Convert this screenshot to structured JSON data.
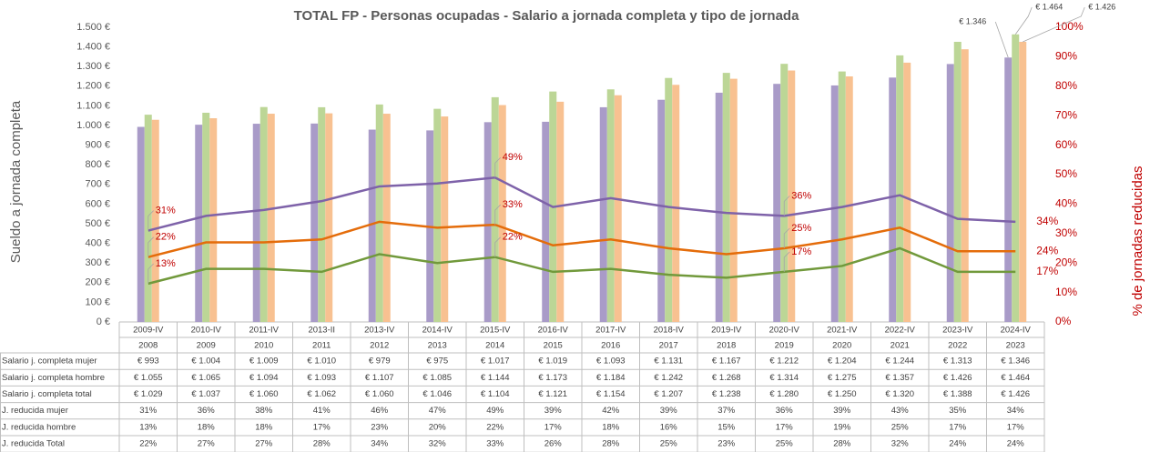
{
  "chart_data": {
    "type": "bar",
    "title": "TOTAL FP - Personas ocupadas - Salario a jornada completa y tipo de jornada",
    "y_label": "Sueldo a jornada completa",
    "y2_label": "% de jornadas reducidas",
    "categories": [
      "2009-IV",
      "2010-IV",
      "2011-IV",
      "2013-II",
      "2013-IV",
      "2014-IV",
      "2015-IV",
      "2016-IV",
      "2017-IV",
      "2018-IV",
      "2019-IV",
      "2020-IV",
      "2021-IV",
      "2022-IV",
      "2023-IV",
      "2024-IV"
    ],
    "category_groups": [
      "2008",
      "2009",
      "2010",
      "2011",
      "2012",
      "2013",
      "2014",
      "2015",
      "2016",
      "2017",
      "2018",
      "2019",
      "2020",
      "2021",
      "2022",
      "2023"
    ],
    "ylim": [
      0,
      1500
    ],
    "yticks": [
      {
        "value": 0,
        "label": "0 €"
      },
      {
        "value": 100,
        "label": "100 €"
      },
      {
        "value": 200,
        "label": "200 €"
      },
      {
        "value": 300,
        "label": "300 €"
      },
      {
        "value": 400,
        "label": "400 €"
      },
      {
        "value": 500,
        "label": "500 €"
      },
      {
        "value": 600,
        "label": "600 €"
      },
      {
        "value": 700,
        "label": "700 €"
      },
      {
        "value": 800,
        "label": "800 €"
      },
      {
        "value": 900,
        "label": "900 €"
      },
      {
        "value": 1000,
        "label": "1.000 €"
      },
      {
        "value": 1100,
        "label": "1.100 €"
      },
      {
        "value": 1200,
        "label": "1.200 €"
      },
      {
        "value": 1300,
        "label": "1.300 €"
      },
      {
        "value": 1400,
        "label": "1.400 €"
      },
      {
        "value": 1500,
        "label": "1.500 €"
      }
    ],
    "y2lim": [
      0,
      100
    ],
    "y2ticks": [
      {
        "value": 0,
        "label": "0%"
      },
      {
        "value": 10,
        "label": "10%"
      },
      {
        "value": 20,
        "label": "20%"
      },
      {
        "value": 30,
        "label": "30%"
      },
      {
        "value": 40,
        "label": "40%"
      },
      {
        "value": 50,
        "label": "50%"
      },
      {
        "value": 60,
        "label": "60%"
      },
      {
        "value": 70,
        "label": "70%"
      },
      {
        "value": 80,
        "label": "80%"
      },
      {
        "value": 90,
        "label": "90%"
      },
      {
        "value": 100,
        "label": "100%"
      }
    ],
    "grid": false,
    "series": [
      {
        "name": "Salario j. completa mujer",
        "type": "bar",
        "color": "#a99bc8",
        "values": [
          993,
          1004,
          1009,
          1010,
          979,
          975,
          1017,
          1019,
          1093,
          1131,
          1167,
          1212,
          1204,
          1244,
          1313,
          1346
        ],
        "value_labels": [
          "€ 993",
          "€ 1.004",
          "€ 1.009",
          "€ 1.010",
          "€ 979",
          "€ 975",
          "€ 1.017",
          "€ 1.019",
          "€ 1.093",
          "€ 1.131",
          "€ 1.167",
          "€ 1.212",
          "€ 1.204",
          "€ 1.244",
          "€ 1.313",
          "€ 1.346"
        ]
      },
      {
        "name": "Salario j. completa hombre",
        "type": "bar",
        "color": "#bcd696",
        "values": [
          1055,
          1065,
          1094,
          1093,
          1107,
          1085,
          1144,
          1173,
          1184,
          1242,
          1268,
          1314,
          1275,
          1357,
          1426,
          1464
        ],
        "value_labels": [
          "€ 1.055",
          "€ 1.065",
          "€ 1.094",
          "€ 1.093",
          "€ 1.107",
          "€ 1.085",
          "€ 1.144",
          "€ 1.173",
          "€ 1.184",
          "€ 1.242",
          "€ 1.268",
          "€ 1.314",
          "€ 1.275",
          "€ 1.357",
          "€ 1.426",
          "€ 1.464"
        ]
      },
      {
        "name": "Salario j. completa total",
        "type": "bar",
        "color": "#f8c191",
        "values": [
          1029,
          1037,
          1060,
          1062,
          1060,
          1046,
          1104,
          1121,
          1154,
          1207,
          1238,
          1280,
          1250,
          1320,
          1388,
          1426
        ],
        "value_labels": [
          "€ 1.029",
          "€ 1.037",
          "€ 1.060",
          "€ 1.062",
          "€ 1.060",
          "€ 1.046",
          "€ 1.104",
          "€ 1.121",
          "€ 1.154",
          "€ 1.207",
          "€ 1.238",
          "€ 1.280",
          "€ 1.250",
          "€ 1.320",
          "€ 1.388",
          "€ 1.426"
        ]
      },
      {
        "name": "J. reducida mujer",
        "type": "line",
        "axis": "y2",
        "color": "#7e62a9",
        "values": [
          31,
          36,
          38,
          41,
          46,
          47,
          49,
          39,
          42,
          39,
          37,
          36,
          39,
          43,
          35,
          34
        ],
        "value_labels": [
          "31%",
          "36%",
          "38%",
          "41%",
          "46%",
          "47%",
          "49%",
          "39%",
          "42%",
          "39%",
          "37%",
          "36%",
          "39%",
          "43%",
          "35%",
          "34%"
        ]
      },
      {
        "name": "J. reducida hombre",
        "type": "line",
        "axis": "y2",
        "color": "#71993b",
        "values": [
          13,
          18,
          18,
          17,
          23,
          20,
          22,
          17,
          18,
          16,
          15,
          17,
          19,
          25,
          17,
          17
        ],
        "value_labels": [
          "13%",
          "18%",
          "18%",
          "17%",
          "23%",
          "20%",
          "22%",
          "17%",
          "18%",
          "16%",
          "15%",
          "17%",
          "19%",
          "25%",
          "17%",
          "17%"
        ]
      },
      {
        "name": "J. reducida Total",
        "type": "line",
        "axis": "y2",
        "color": "#e46c0a",
        "values": [
          22,
          27,
          27,
          28,
          34,
          32,
          33,
          26,
          28,
          25,
          23,
          25,
          28,
          32,
          24,
          24
        ],
        "value_labels": [
          "22%",
          "27%",
          "27%",
          "28%",
          "34%",
          "32%",
          "33%",
          "26%",
          "28%",
          "25%",
          "23%",
          "25%",
          "28%",
          "32%",
          "24%",
          "24%"
        ]
      }
    ]
  }
}
